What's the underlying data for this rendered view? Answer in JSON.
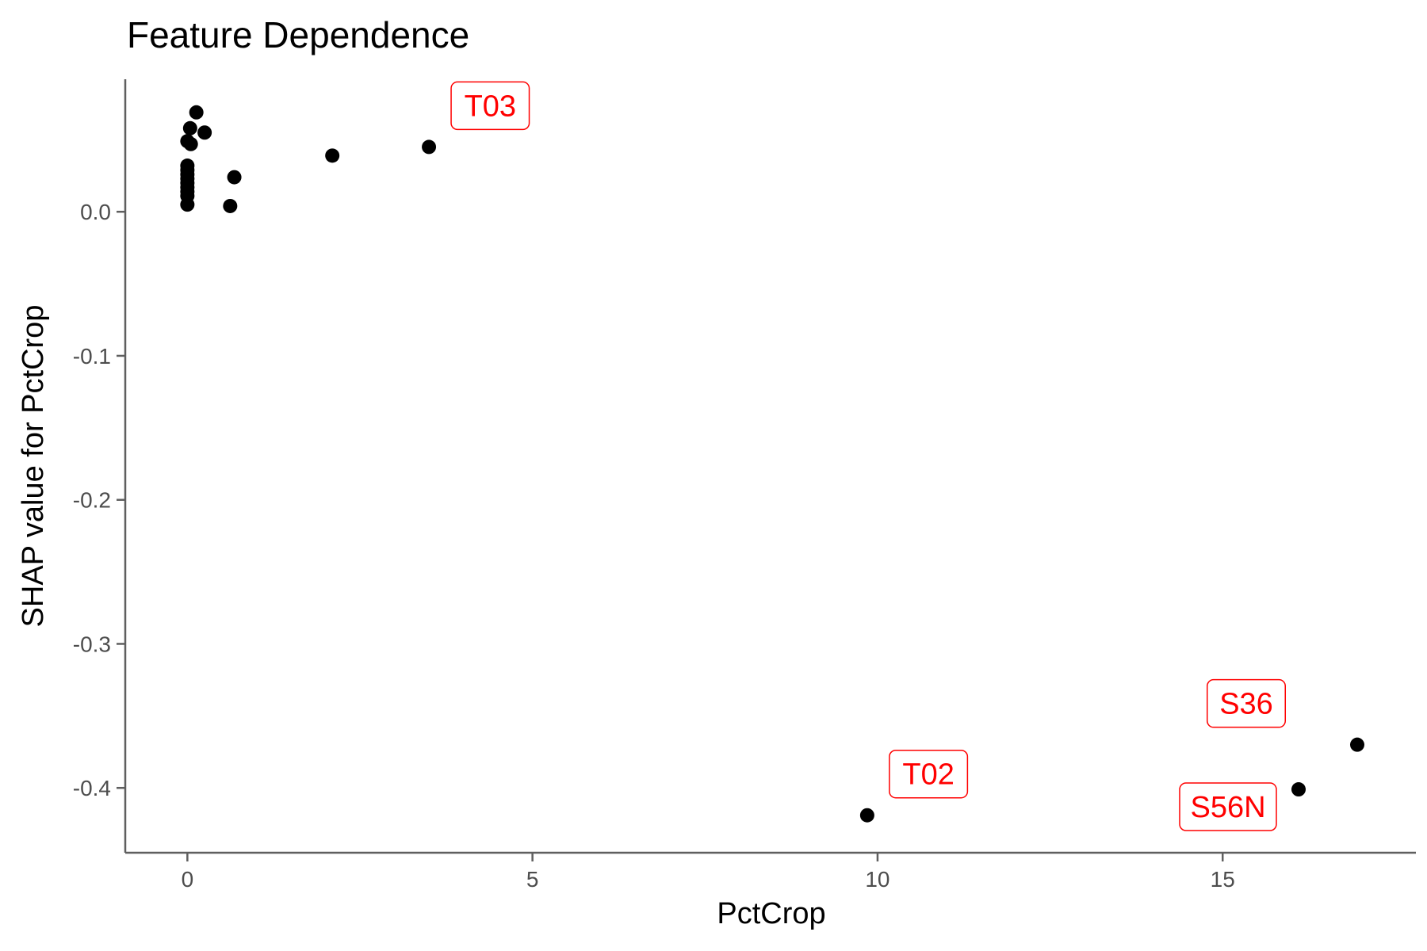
{
  "chart_data": {
    "type": "scatter",
    "title": "Feature Dependence",
    "xlabel": "PctCrop",
    "ylabel": "SHAP value for PctCrop",
    "xlim": [
      -0.9,
      17.8
    ],
    "ylim": [
      -0.445,
      0.092
    ],
    "x_ticks": [
      0,
      5,
      10,
      15
    ],
    "y_ticks": [
      0.0,
      -0.1,
      -0.2,
      -0.3,
      -0.4
    ],
    "y_tick_labels": [
      "0.0",
      "-0.1",
      "-0.2",
      "-0.3",
      "-0.4"
    ],
    "grid": false,
    "legend": "none",
    "point_color": "#000000",
    "label_color": "#ff0000",
    "points": [
      {
        "x": 0.13,
        "y": 0.069
      },
      {
        "x": 0.04,
        "y": 0.058
      },
      {
        "x": 0.25,
        "y": 0.055
      },
      {
        "x": 0.0,
        "y": 0.049
      },
      {
        "x": 0.05,
        "y": 0.047
      },
      {
        "x": 0.0,
        "y": 0.032
      },
      {
        "x": 0.0,
        "y": 0.029
      },
      {
        "x": 0.0,
        "y": 0.026
      },
      {
        "x": 0.0,
        "y": 0.023
      },
      {
        "x": 0.0,
        "y": 0.02
      },
      {
        "x": 0.0,
        "y": 0.017
      },
      {
        "x": 0.0,
        "y": 0.014
      },
      {
        "x": 0.0,
        "y": 0.011
      },
      {
        "x": 0.0,
        "y": 0.005
      },
      {
        "x": 0.68,
        "y": 0.024
      },
      {
        "x": 0.62,
        "y": 0.004
      },
      {
        "x": 2.1,
        "y": 0.039
      },
      {
        "x": 3.5,
        "y": 0.045,
        "label": "T03"
      },
      {
        "x": 9.85,
        "y": -0.419,
        "label": "T02"
      },
      {
        "x": 16.1,
        "y": -0.401,
        "label": "S56N"
      },
      {
        "x": 16.95,
        "y": -0.37,
        "label": "S36"
      }
    ]
  }
}
